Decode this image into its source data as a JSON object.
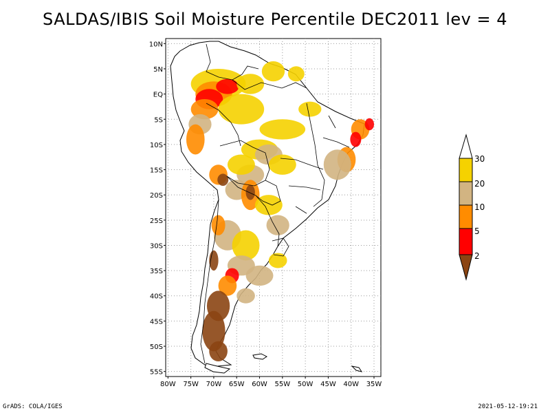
{
  "title": "SALDAS/IBIS Soil Moisture Percentile DEC2011 lev = 4",
  "map": {
    "lat_ticks": [
      "10N",
      "5N",
      "EQ",
      "5S",
      "10S",
      "15S",
      "20S",
      "25S",
      "30S",
      "35S",
      "40S",
      "45S",
      "50S",
      "55S"
    ],
    "lon_ticks": [
      "80W",
      "75W",
      "70W",
      "65W",
      "60W",
      "55W",
      "50W",
      "45W",
      "40W",
      "35W"
    ],
    "lon_range": [
      -80.5,
      -33.5
    ],
    "lat_range": [
      -56,
      11
    ]
  },
  "legend": {
    "labels": [
      "30",
      "20",
      "10",
      "5",
      "2"
    ],
    "colors": {
      "above_30": "#ffffff",
      "20_30": "#f5d200",
      "10_20": "#d2b482",
      "5_10": "#ff8c00",
      "2_5": "#ff0000",
      "below_2": "#8b4513"
    }
  },
  "footer": {
    "left": "GrADS: COLA/IGES",
    "right": "2021-05-12-19:21"
  }
}
